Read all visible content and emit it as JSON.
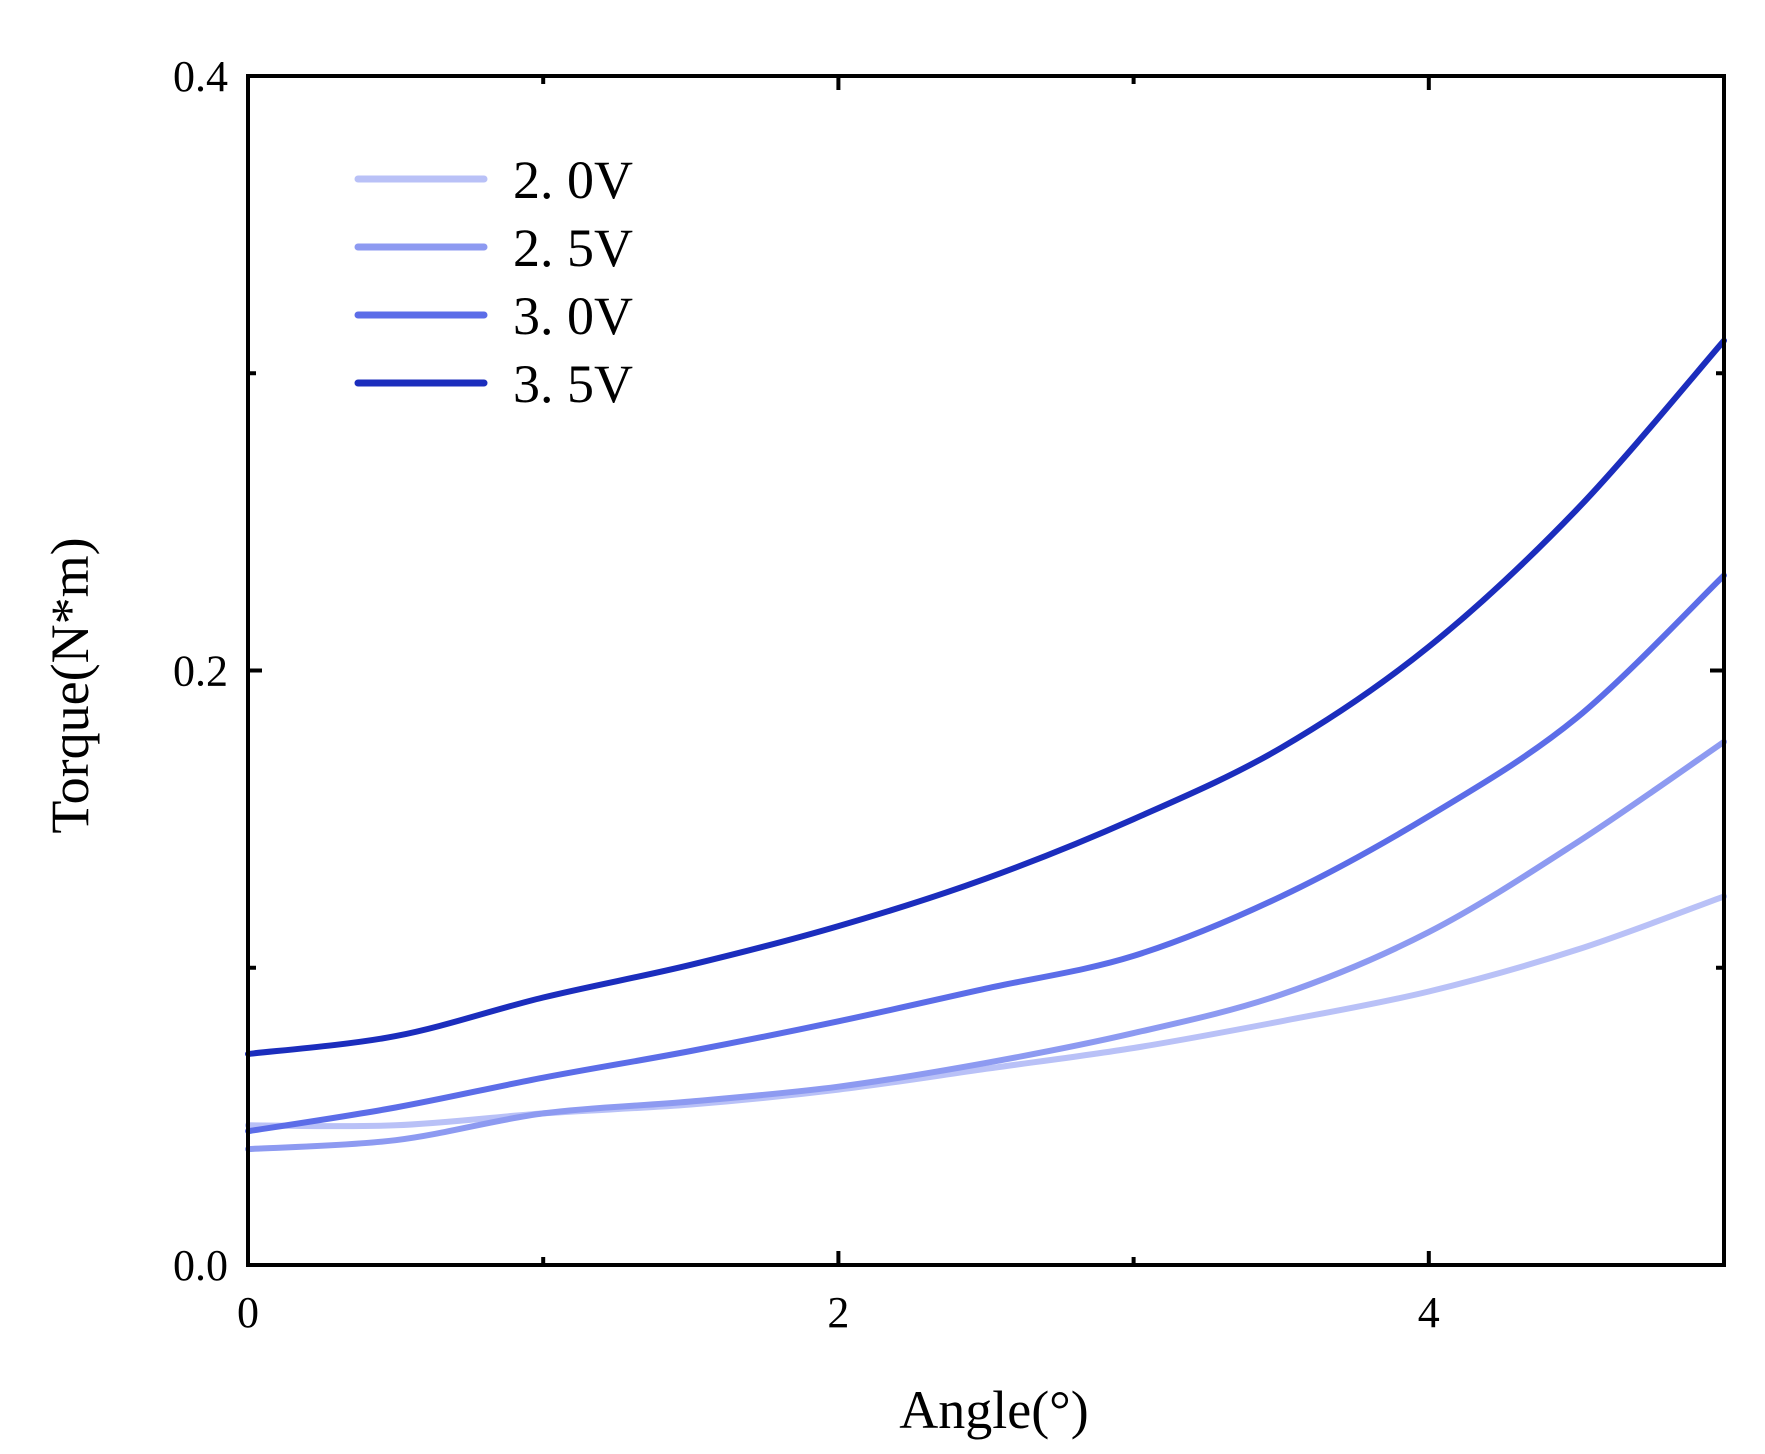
{
  "chart_data": {
    "type": "line",
    "title": "",
    "xlabel": "Angle(°)",
    "ylabel": "Torque(N*m)",
    "xlim": [
      0,
      5
    ],
    "ylim": [
      0,
      0.4
    ],
    "x_ticks": [
      0,
      2,
      4
    ],
    "x_tick_labels": [
      "0",
      "2",
      "4"
    ],
    "x_minor_ticks": [
      1,
      3
    ],
    "y_ticks": [
      0,
      0.2,
      0.4
    ],
    "y_tick_labels": [
      "0.0",
      "0.2",
      "0.4"
    ],
    "y_minor_ticks": [
      0.1,
      0.3
    ],
    "grid": false,
    "legend_position": "top-left",
    "series": [
      {
        "name": "2. 0V",
        "color": "#b9c1f7",
        "x": [
          0,
          0.5,
          1.0,
          1.5,
          2.0,
          2.5,
          3.0,
          3.5,
          4.0,
          4.5,
          5.0
        ],
        "y": [
          0.047,
          0.047,
          0.051,
          0.054,
          0.059,
          0.066,
          0.073,
          0.082,
          0.092,
          0.106,
          0.124
        ]
      },
      {
        "name": "2. 5V",
        "color": "#8d9af1",
        "x": [
          0,
          0.5,
          1.0,
          1.5,
          2.0,
          2.5,
          3.0,
          3.5,
          4.0,
          4.5,
          5.0
        ],
        "y": [
          0.039,
          0.042,
          0.051,
          0.055,
          0.06,
          0.068,
          0.078,
          0.091,
          0.112,
          0.142,
          0.176
        ]
      },
      {
        "name": "3. 0V",
        "color": "#5c6de8",
        "x": [
          0,
          0.5,
          1.0,
          1.5,
          2.0,
          2.5,
          3.0,
          3.5,
          4.0,
          4.5,
          5.0
        ],
        "y": [
          0.045,
          0.053,
          0.063,
          0.072,
          0.082,
          0.093,
          0.104,
          0.124,
          0.151,
          0.184,
          0.232
        ]
      },
      {
        "name": "3. 5V",
        "color": "#1b2dbd",
        "x": [
          0,
          0.5,
          1.0,
          1.5,
          2.0,
          2.5,
          3.0,
          3.5,
          4.0,
          4.5,
          5.0
        ],
        "y": [
          0.071,
          0.077,
          0.09,
          0.101,
          0.114,
          0.13,
          0.15,
          0.174,
          0.208,
          0.254,
          0.311
        ]
      }
    ]
  }
}
